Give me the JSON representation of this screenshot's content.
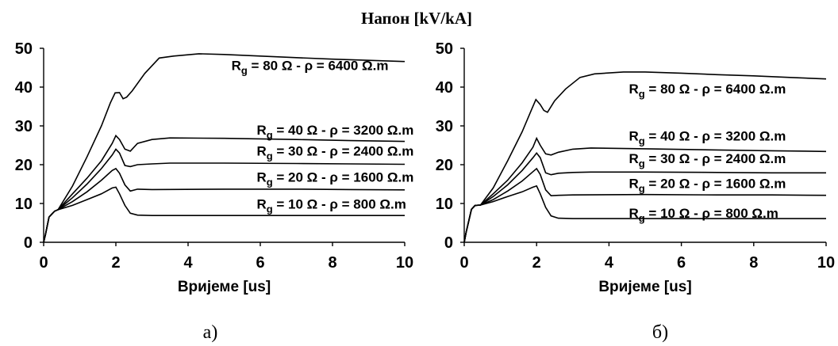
{
  "figure_title": "Напон [kV/kA]",
  "chart_data": [
    {
      "type": "line",
      "caption": "a)",
      "xlabel": "Вријеме [us]",
      "ylabel": "",
      "xlim": [
        0,
        10
      ],
      "ylim": [
        0,
        50
      ],
      "xticks": [
        "0",
        "2",
        "4",
        "6",
        "8",
        "10"
      ],
      "yticks": [
        "0",
        "10",
        "20",
        "30",
        "40",
        "50"
      ],
      "grid": false,
      "series": [
        {
          "name": "Rg = 80 Ω - ρ = 6400 Ω.m",
          "label_sub": "g",
          "label_pre": "R",
          "label_post": " = 80 Ω - ρ = 6400 Ω.m",
          "label_at": [
            5.2,
            45.6
          ],
          "points": [
            [
              0,
              0
            ],
            [
              0.05,
              2
            ],
            [
              0.15,
              6.5
            ],
            [
              0.3,
              8
            ],
            [
              0.4,
              8.4
            ],
            [
              0.8,
              14.5
            ],
            [
              1.2,
              22
            ],
            [
              1.6,
              30
            ],
            [
              1.85,
              36
            ],
            [
              1.98,
              38.5
            ],
            [
              2.1,
              38.6
            ],
            [
              2.2,
              37
            ],
            [
              2.3,
              37.4
            ],
            [
              2.45,
              39
            ],
            [
              2.8,
              43.5
            ],
            [
              3.2,
              47.5
            ],
            [
              3.6,
              48
            ],
            [
              4.3,
              48.6
            ],
            [
              5,
              48.4
            ],
            [
              6,
              48
            ],
            [
              7,
              47.6
            ],
            [
              8,
              47.2
            ],
            [
              9,
              46.9
            ],
            [
              10,
              46.6
            ]
          ]
        },
        {
          "name": "Rg = 40 Ω - ρ = 3200 Ω.m",
          "label_sub": "g",
          "label_pre": "R",
          "label_post": " = 40 Ω - ρ = 3200 Ω.m",
          "label_at": [
            5.9,
            29
          ],
          "points": [
            [
              0,
              0
            ],
            [
              0.05,
              2
            ],
            [
              0.15,
              6.5
            ],
            [
              0.3,
              8
            ],
            [
              0.4,
              8.4
            ],
            [
              0.8,
              12.5
            ],
            [
              1.2,
              16.5
            ],
            [
              1.6,
              21
            ],
            [
              1.9,
              25.5
            ],
            [
              2.0,
              27.5
            ],
            [
              2.1,
              26.5
            ],
            [
              2.25,
              24
            ],
            [
              2.4,
              23.5
            ],
            [
              2.6,
              25.5
            ],
            [
              3,
              26.5
            ],
            [
              3.5,
              26.9
            ],
            [
              5,
              26.8
            ],
            [
              7,
              26.5
            ],
            [
              8.5,
              26.2
            ],
            [
              10,
              26
            ]
          ]
        },
        {
          "name": "Rg = 30 Ω - ρ = 2400 Ω.m",
          "label_sub": "g",
          "label_pre": "R",
          "label_post": " = 30 Ω - ρ = 2400 Ω.m",
          "label_at": [
            5.9,
            23.6
          ],
          "points": [
            [
              0,
              0
            ],
            [
              0.05,
              2
            ],
            [
              0.15,
              6.5
            ],
            [
              0.3,
              8
            ],
            [
              0.4,
              8.4
            ],
            [
              0.8,
              11.5
            ],
            [
              1.2,
              15
            ],
            [
              1.6,
              19
            ],
            [
              1.9,
              22.5
            ],
            [
              2.0,
              24
            ],
            [
              2.1,
              23
            ],
            [
              2.25,
              19.8
            ],
            [
              2.4,
              19.5
            ],
            [
              2.6,
              20
            ],
            [
              3,
              20.2
            ],
            [
              3.5,
              20.4
            ],
            [
              5,
              20.4
            ],
            [
              7,
              20.3
            ],
            [
              8.5,
              20.2
            ],
            [
              10,
              20.1
            ]
          ]
        },
        {
          "name": "Rg = 20 Ω - ρ = 1600 Ω.m",
          "label_sub": "g",
          "label_pre": "R",
          "label_post": " = 20 Ω - ρ = 1600 Ω.m",
          "label_at": [
            5.9,
            16.8
          ],
          "points": [
            [
              0,
              0
            ],
            [
              0.05,
              2
            ],
            [
              0.15,
              6.5
            ],
            [
              0.3,
              8
            ],
            [
              0.4,
              8.4
            ],
            [
              0.8,
              10.5
            ],
            [
              1.2,
              13
            ],
            [
              1.6,
              16
            ],
            [
              1.9,
              18.5
            ],
            [
              2.0,
              19
            ],
            [
              2.1,
              17.8
            ],
            [
              2.25,
              14.8
            ],
            [
              2.4,
              13.2
            ],
            [
              2.6,
              13.7
            ],
            [
              3,
              13.6
            ],
            [
              5,
              13.7
            ],
            [
              7,
              13.7
            ],
            [
              8.5,
              13.6
            ],
            [
              10,
              13.5
            ]
          ]
        },
        {
          "name": "Rg = 10 Ω - ρ = 800 Ω.m",
          "label_sub": "g",
          "label_pre": "R",
          "label_post": " = 10 Ω - ρ = 800 Ω.m",
          "label_at": [
            5.9,
            9.9
          ],
          "points": [
            [
              0,
              0
            ],
            [
              0.05,
              2
            ],
            [
              0.15,
              6.5
            ],
            [
              0.3,
              8
            ],
            [
              0.4,
              8.4
            ],
            [
              0.8,
              9.5
            ],
            [
              1.2,
              11
            ],
            [
              1.6,
              12.5
            ],
            [
              1.9,
              14
            ],
            [
              2.0,
              14.2
            ],
            [
              2.1,
              12.5
            ],
            [
              2.25,
              9.5
            ],
            [
              2.4,
              7.5
            ],
            [
              2.6,
              7
            ],
            [
              3,
              6.9
            ],
            [
              5,
              6.9
            ],
            [
              7,
              6.9
            ],
            [
              8.5,
              6.9
            ],
            [
              10,
              6.9
            ]
          ]
        }
      ]
    },
    {
      "type": "line",
      "caption": "б)",
      "xlabel": "Вријеме [us]",
      "ylabel": "",
      "xlim": [
        0,
        10
      ],
      "ylim": [
        0,
        50
      ],
      "xticks": [
        "0",
        "2",
        "4",
        "6",
        "8",
        "10"
      ],
      "yticks": [
        "0",
        "10",
        "20",
        "30",
        "40",
        "50"
      ],
      "grid": false,
      "series": [
        {
          "name": "Rg = 80 Ω - ρ = 6400 Ω.m",
          "label_sub": "g",
          "label_pre": "R",
          "label_post": " = 80 Ω - ρ = 6400 Ω.m",
          "label_at": [
            4.55,
            39.6
          ],
          "points": [
            [
              0,
              0
            ],
            [
              0.05,
              2.5
            ],
            [
              0.2,
              8.5
            ],
            [
              0.3,
              9.5
            ],
            [
              0.45,
              9.6
            ],
            [
              0.8,
              14
            ],
            [
              1.2,
              21
            ],
            [
              1.6,
              28.5
            ],
            [
              1.85,
              34
            ],
            [
              1.98,
              36.8
            ],
            [
              2.1,
              35.5
            ],
            [
              2.2,
              34
            ],
            [
              2.3,
              33.5
            ],
            [
              2.5,
              36.5
            ],
            [
              2.8,
              39.5
            ],
            [
              3.2,
              42.5
            ],
            [
              3.6,
              43.4
            ],
            [
              4.4,
              43.9
            ],
            [
              5,
              43.9
            ],
            [
              6,
              43.6
            ],
            [
              7,
              43.2
            ],
            [
              8,
              42.9
            ],
            [
              9,
              42.5
            ],
            [
              10,
              42.1
            ]
          ]
        },
        {
          "name": "Rg = 40 Ω - ρ = 3200 Ω.m",
          "label_sub": "g",
          "label_pre": "R",
          "label_post": " = 40 Ω - ρ = 3200 Ω.m",
          "label_at": [
            4.55,
            27.4
          ],
          "points": [
            [
              0,
              0
            ],
            [
              0.05,
              2.5
            ],
            [
              0.2,
              8.5
            ],
            [
              0.3,
              9.5
            ],
            [
              0.45,
              9.6
            ],
            [
              0.8,
              12.5
            ],
            [
              1.2,
              16
            ],
            [
              1.6,
              20.5
            ],
            [
              1.9,
              24.5
            ],
            [
              2.0,
              26.8
            ],
            [
              2.1,
              25
            ],
            [
              2.25,
              22.8
            ],
            [
              2.4,
              22.5
            ],
            [
              2.6,
              23.2
            ],
            [
              3,
              24
            ],
            [
              3.5,
              24.3
            ],
            [
              5,
              24.1
            ],
            [
              7,
              23.8
            ],
            [
              8.5,
              23.6
            ],
            [
              10,
              23.4
            ]
          ]
        },
        {
          "name": "Rg = 30 Ω - ρ = 2400 Ω.m",
          "label_sub": "g",
          "label_pre": "R",
          "label_post": " = 30 Ω - ρ = 2400 Ω.m",
          "label_at": [
            4.55,
            21.6
          ],
          "points": [
            [
              0,
              0
            ],
            [
              0.05,
              2.5
            ],
            [
              0.2,
              8.5
            ],
            [
              0.3,
              9.5
            ],
            [
              0.45,
              9.6
            ],
            [
              0.8,
              11.8
            ],
            [
              1.2,
              14.8
            ],
            [
              1.6,
              18.5
            ],
            [
              1.9,
              21.8
            ],
            [
              2.0,
              23
            ],
            [
              2.1,
              21.8
            ],
            [
              2.25,
              17.9
            ],
            [
              2.4,
              17.4
            ],
            [
              2.6,
              17.8
            ],
            [
              3,
              18
            ],
            [
              3.5,
              18.1
            ],
            [
              5,
              18.1
            ],
            [
              7,
              18
            ],
            [
              8.5,
              17.9
            ],
            [
              10,
              17.9
            ]
          ]
        },
        {
          "name": "Rg = 20 Ω - ρ = 1600 Ω.m",
          "label_sub": "g",
          "label_pre": "R",
          "label_post": " = 20 Ω - ρ = 1600 Ω.m",
          "label_at": [
            4.55,
            15.2
          ],
          "points": [
            [
              0,
              0
            ],
            [
              0.05,
              2.5
            ],
            [
              0.2,
              8.5
            ],
            [
              0.3,
              9.5
            ],
            [
              0.45,
              9.6
            ],
            [
              0.8,
              11
            ],
            [
              1.2,
              13.2
            ],
            [
              1.6,
              15.8
            ],
            [
              1.9,
              18.2
            ],
            [
              2.0,
              19
            ],
            [
              2.1,
              17.5
            ],
            [
              2.25,
              13.5
            ],
            [
              2.4,
              12
            ],
            [
              2.6,
              12.1
            ],
            [
              3,
              12.2
            ],
            [
              5,
              12.3
            ],
            [
              7,
              12.2
            ],
            [
              8.5,
              12.2
            ],
            [
              10,
              12.1
            ]
          ]
        },
        {
          "name": "Rg = 10 Ω - ρ = 800 Ω.m",
          "label_sub": "g",
          "label_pre": "R",
          "label_post": " = 10 Ω - ρ = 800 Ω.m",
          "label_at": [
            4.55,
            7.6
          ],
          "points": [
            [
              0,
              0
            ],
            [
              0.05,
              2.5
            ],
            [
              0.2,
              8.5
            ],
            [
              0.3,
              9.5
            ],
            [
              0.45,
              9.6
            ],
            [
              0.8,
              10.5
            ],
            [
              1.2,
              11.8
            ],
            [
              1.6,
              13
            ],
            [
              1.9,
              14.2
            ],
            [
              2.0,
              14.5
            ],
            [
              2.1,
              12.5
            ],
            [
              2.25,
              9
            ],
            [
              2.4,
              6.8
            ],
            [
              2.6,
              6.2
            ],
            [
              3,
              6.1
            ],
            [
              5,
              6.1
            ],
            [
              7,
              6.1
            ],
            [
              8.5,
              6.1
            ],
            [
              10,
              6.1
            ]
          ]
        }
      ]
    }
  ]
}
